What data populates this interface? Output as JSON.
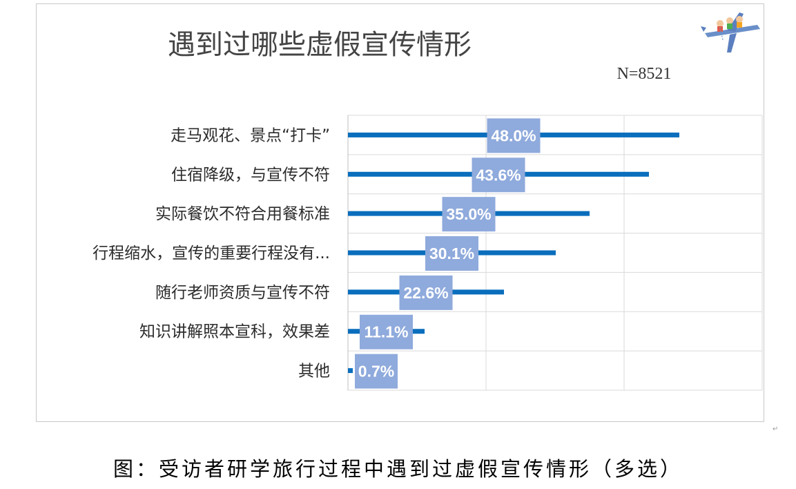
{
  "chart_data": {
    "type": "bar",
    "orientation": "horizontal",
    "title": "遇到过哪些虚假宣传情形",
    "note": "N=8521",
    "categories": [
      "走马观花、景点“打卡”",
      "住宿降级，与宣传不符",
      "实际餐饮不符合用餐标准",
      "行程缩水，宣传的重要行程没有...",
      "随行老师资质与宣传不符",
      "知识讲解照本宣科，效果差",
      "其他"
    ],
    "values": [
      48.0,
      43.6,
      35.0,
      30.1,
      22.6,
      11.1,
      0.7
    ],
    "value_labels": [
      "48.0%",
      "43.6%",
      "35.0%",
      "30.1%",
      "22.6%",
      "11.1%",
      "0.7%"
    ],
    "xlim": [
      0,
      60
    ],
    "grid": true,
    "bar_color": "#0a6ebd",
    "label_box_color": "#8faadc",
    "label_text_color": "#ffffff"
  },
  "caption": "图：受访者研学旅行过程中遇到过虚假宣传情形（多选）",
  "decorative": {
    "logo_icon": "airplane-with-children-icon"
  }
}
